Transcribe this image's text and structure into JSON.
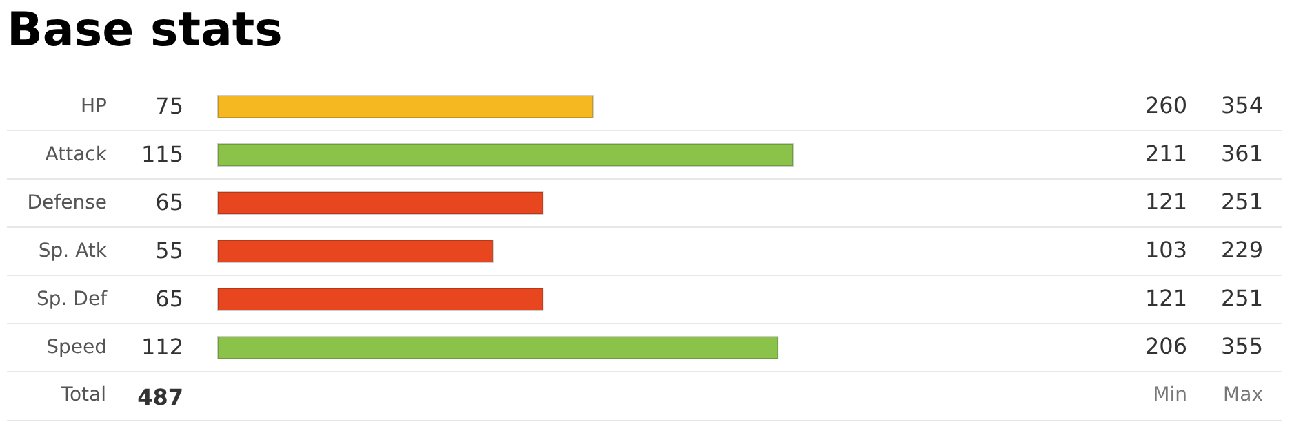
{
  "chart_data": [
    {
      "type": "bar",
      "title": "Base stats",
      "orientation": "horizontal",
      "categories": [
        "HP",
        "Attack",
        "Defense",
        "Sp. Atk",
        "Sp. Def",
        "Speed"
      ],
      "values": [
        75,
        115,
        65,
        55,
        65,
        112
      ],
      "colors": [
        "#f5b820",
        "#8bc34a",
        "#e8461e",
        "#e8461e",
        "#e8461e",
        "#8bc34a"
      ],
      "data_labels": true,
      "grid": "y",
      "annotations": [
        "Total",
        "487"
      ]
    },
    {
      "type": "other",
      "annotations": [
        "260",
        "354",
        "211",
        "361",
        "121",
        "251",
        "103",
        "229",
        "121",
        "251",
        "206",
        "355",
        "Min",
        "Max"
      ]
    }
  ]
}
